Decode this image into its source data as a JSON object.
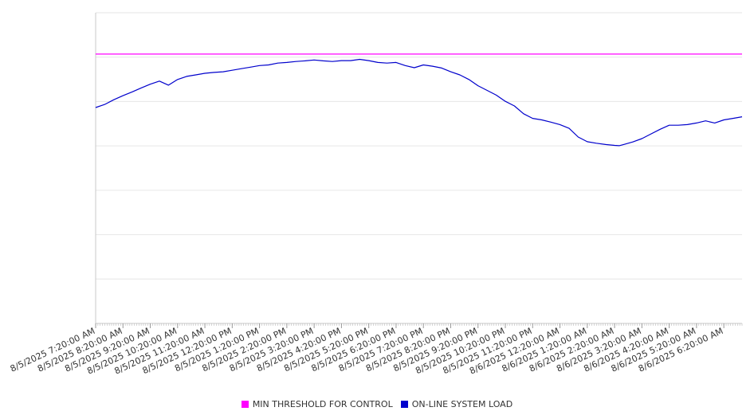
{
  "chart_data": {
    "type": "line",
    "title": "",
    "xlabel": "",
    "ylabel": "",
    "grid": true,
    "legend_position": "bottom-center",
    "x_tick_labels": [
      "8/5/2025 7:20:00 AM",
      "8/5/2025 8:20:00 AM",
      "8/5/2025 9:20:00 AM",
      "8/5/2025 10:20:00 AM",
      "8/5/2025 11:20:00 AM",
      "8/5/2025 12:20:00 PM",
      "8/5/2025 1:20:00 PM",
      "8/5/2025 2:20:00 PM",
      "8/5/2025 3:20:00 PM",
      "8/5/2025 4:20:00 PM",
      "8/5/2025 5:20:00 PM",
      "8/5/2025 6:20:00 PM",
      "8/5/2025 7:20:00 PM",
      "8/5/2025 8:20:00 PM",
      "8/5/2025 9:20:00 PM",
      "8/5/2025 10:20:00 PM",
      "8/5/2025 11:20:00 PM",
      "8/6/2025 12:20:00 AM",
      "8/6/2025 1:20:00 AM",
      "8/6/2025 2:20:00 AM",
      "8/6/2025 3:20:00 AM",
      "8/6/2025 4:20:00 AM",
      "8/6/2025 5:20:00 AM",
      "8/6/2025 6:20:00 AM"
    ],
    "x_range": [
      "8/5/2025 7:20:00 AM",
      "8/6/2025 7:00:00 AM"
    ],
    "y_range_fraction": [
      0,
      1
    ],
    "series": [
      {
        "name": "MIN THRESHOLD FOR CONTROL",
        "color": "#ff00ff",
        "x": [
          "8/5/2025 7:20:00 AM",
          "8/6/2025 7:00:00 AM"
        ],
        "values": [
          0.867,
          0.867
        ]
      },
      {
        "name": "ON-LINE SYSTEM LOAD",
        "color": "#0000cc",
        "x": [
          "8/5/2025 7:20:00 AM",
          "8/5/2025 7:40:00 AM",
          "8/5/2025 8:00:00 AM",
          "8/5/2025 8:20:00 AM",
          "8/5/2025 8:40:00 AM",
          "8/5/2025 9:00:00 AM",
          "8/5/2025 9:20:00 AM",
          "8/5/2025 9:40:00 AM",
          "8/5/2025 10:00:00 AM",
          "8/5/2025 10:20:00 AM",
          "8/5/2025 10:40:00 AM",
          "8/5/2025 11:00:00 AM",
          "8/5/2025 11:20:00 AM",
          "8/5/2025 11:40:00 AM",
          "8/5/2025 12:00:00 PM",
          "8/5/2025 12:20:00 PM",
          "8/5/2025 12:40:00 PM",
          "8/5/2025 1:00:00 PM",
          "8/5/2025 1:20:00 PM",
          "8/5/2025 1:40:00 PM",
          "8/5/2025 2:00:00 PM",
          "8/5/2025 2:20:00 PM",
          "8/5/2025 2:40:00 PM",
          "8/5/2025 3:00:00 PM",
          "8/5/2025 3:20:00 PM",
          "8/5/2025 3:40:00 PM",
          "8/5/2025 4:00:00 PM",
          "8/5/2025 4:20:00 PM",
          "8/5/2025 4:40:00 PM",
          "8/5/2025 5:00:00 PM",
          "8/5/2025 5:20:00 PM",
          "8/5/2025 5:40:00 PM",
          "8/5/2025 6:00:00 PM",
          "8/5/2025 6:20:00 PM",
          "8/5/2025 6:40:00 PM",
          "8/5/2025 7:00:00 PM",
          "8/5/2025 7:20:00 PM",
          "8/5/2025 7:40:00 PM",
          "8/5/2025 8:00:00 PM",
          "8/5/2025 8:20:00 PM",
          "8/5/2025 8:40:00 PM",
          "8/5/2025 9:00:00 PM",
          "8/5/2025 9:20:00 PM",
          "8/5/2025 9:40:00 PM",
          "8/5/2025 10:00:00 PM",
          "8/5/2025 10:20:00 PM",
          "8/5/2025 10:40:00 PM",
          "8/5/2025 11:00:00 PM",
          "8/5/2025 11:20:00 PM",
          "8/5/2025 11:40:00 PM",
          "8/6/2025 12:00:00 AM",
          "8/6/2025 12:20:00 AM",
          "8/6/2025 12:40:00 AM",
          "8/6/2025 1:00:00 AM",
          "8/6/2025 1:20:00 AM",
          "8/6/2025 1:40:00 AM",
          "8/6/2025 2:00:00 AM",
          "8/6/2025 2:20:00 AM",
          "8/6/2025 2:30:00 AM",
          "8/6/2025 2:40:00 AM",
          "8/6/2025 3:00:00 AM",
          "8/6/2025 3:20:00 AM",
          "8/6/2025 3:40:00 AM",
          "8/6/2025 4:00:00 AM",
          "8/6/2025 4:20:00 AM",
          "8/6/2025 4:40:00 AM",
          "8/6/2025 5:00:00 AM",
          "8/6/2025 5:20:00 AM",
          "8/6/2025 5:40:00 AM",
          "8/6/2025 6:00:00 AM",
          "8/6/2025 6:20:00 AM",
          "8/6/2025 6:40:00 AM",
          "8/6/2025 7:00:00 AM"
        ],
        "values": [
          0.695,
          0.705,
          0.72,
          0.733,
          0.745,
          0.758,
          0.77,
          0.78,
          0.767,
          0.785,
          0.795,
          0.8,
          0.805,
          0.808,
          0.81,
          0.815,
          0.82,
          0.825,
          0.83,
          0.832,
          0.838,
          0.84,
          0.843,
          0.845,
          0.848,
          0.845,
          0.843,
          0.846,
          0.846,
          0.85,
          0.846,
          0.84,
          0.838,
          0.84,
          0.83,
          0.823,
          0.832,
          0.828,
          0.822,
          0.81,
          0.8,
          0.785,
          0.765,
          0.75,
          0.735,
          0.715,
          0.7,
          0.675,
          0.66,
          0.655,
          0.648,
          0.64,
          0.628,
          0.6,
          0.585,
          0.58,
          0.576,
          0.573,
          0.572,
          0.576,
          0.584,
          0.595,
          0.61,
          0.625,
          0.638,
          0.638,
          0.64,
          0.645,
          0.652,
          0.645,
          0.655,
          0.66,
          0.665
        ]
      }
    ]
  }
}
